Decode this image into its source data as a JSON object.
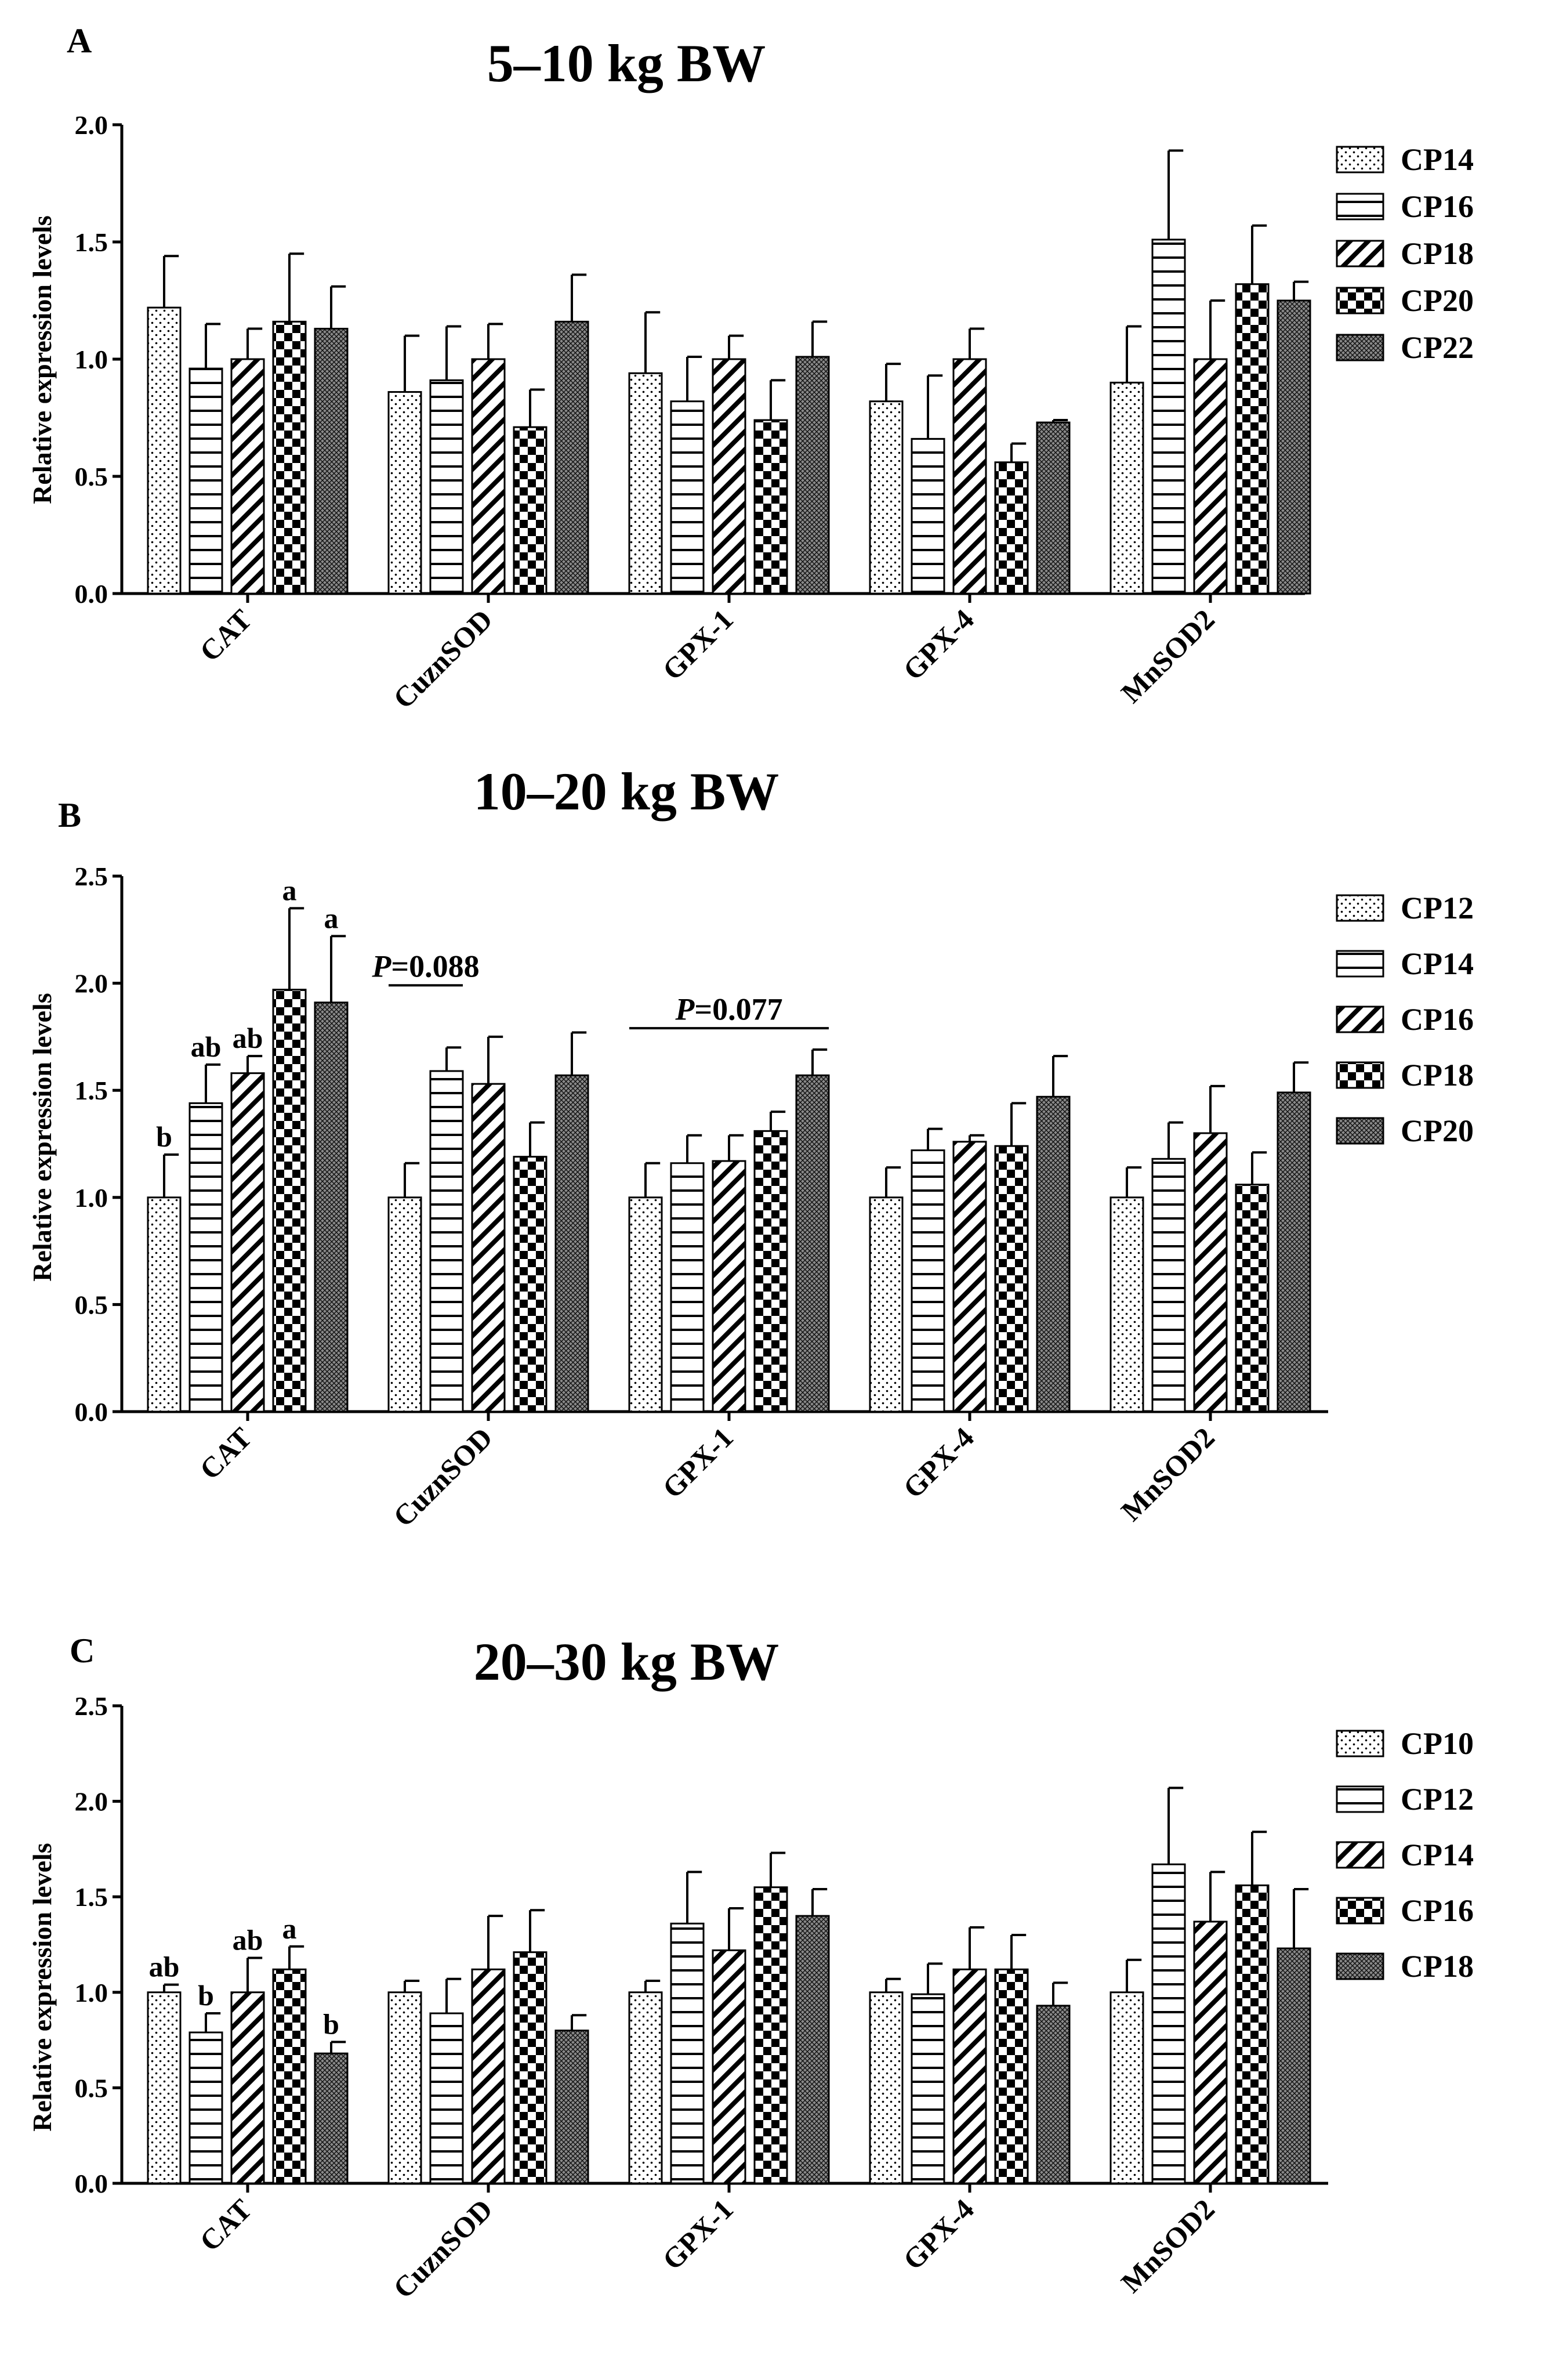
{
  "figure": {
    "panel_count": 3
  },
  "chart_data": [
    {
      "type": "bar",
      "panel_letter": "A",
      "title": "5–10 kg BW",
      "xlabel": "",
      "ylabel": "Relative expression levels",
      "ylim": [
        0,
        2.0
      ],
      "yticks": [
        "0.0",
        "0.5",
        "1.0",
        "1.5",
        "2.0"
      ],
      "categories": [
        "CAT",
        "CuznSOD",
        "GPX-1",
        "GPX-4",
        "MnSOD2"
      ],
      "legend_position": "right",
      "series": [
        {
          "name": "CP14",
          "pattern": "dots",
          "values": [
            1.22,
            0.86,
            0.94,
            0.82,
            0.9
          ],
          "errors": [
            0.22,
            0.24,
            0.26,
            0.16,
            0.24
          ],
          "labels": [
            "",
            "",
            "",
            "",
            ""
          ]
        },
        {
          "name": "CP16",
          "pattern": "hlines",
          "values": [
            0.96,
            0.91,
            0.82,
            0.66,
            1.51
          ],
          "errors": [
            0.19,
            0.23,
            0.19,
            0.27,
            0.38
          ],
          "labels": [
            "",
            "",
            "",
            "",
            ""
          ]
        },
        {
          "name": "CP18",
          "pattern": "diag",
          "values": [
            1.0,
            1.0,
            1.0,
            1.0,
            1.0
          ],
          "errors": [
            0.13,
            0.15,
            0.1,
            0.13,
            0.25
          ],
          "labels": [
            "",
            "",
            "",
            "",
            ""
          ]
        },
        {
          "name": "CP20",
          "pattern": "checker",
          "values": [
            1.16,
            0.71,
            0.74,
            0.56,
            1.32
          ],
          "errors": [
            0.29,
            0.16,
            0.17,
            0.08,
            0.25
          ],
          "labels": [
            "",
            "",
            "",
            "",
            ""
          ]
        },
        {
          "name": "CP22",
          "pattern": "crosshatch",
          "values": [
            1.13,
            1.16,
            1.01,
            0.73,
            1.25
          ],
          "errors": [
            0.18,
            0.2,
            0.15,
            0.01,
            0.08
          ],
          "labels": [
            "",
            "",
            "",
            "",
            ""
          ]
        }
      ],
      "annotations": []
    },
    {
      "type": "bar",
      "panel_letter": "B",
      "title": "10–20 kg BW",
      "xlabel": "",
      "ylabel": "Relative expression levels",
      "ylim": [
        0,
        2.5
      ],
      "yticks": [
        "0.0",
        "0.5",
        "1.0",
        "1.5",
        "2.0",
        "2.5"
      ],
      "categories": [
        "CAT",
        "CuznSOD",
        "GPX-1",
        "GPX-4",
        "MnSOD2"
      ],
      "legend_position": "right",
      "series": [
        {
          "name": "CP12",
          "pattern": "dots",
          "values": [
            1.0,
            1.0,
            1.0,
            1.0,
            1.0
          ],
          "errors": [
            0.2,
            0.16,
            0.16,
            0.14,
            0.14
          ],
          "labels": [
            "b",
            "",
            "",
            "",
            ""
          ]
        },
        {
          "name": "CP14",
          "pattern": "hlines",
          "values": [
            1.44,
            1.59,
            1.16,
            1.22,
            1.18
          ],
          "errors": [
            0.18,
            0.11,
            0.13,
            0.1,
            0.17
          ],
          "labels": [
            "ab",
            "",
            "",
            "",
            ""
          ]
        },
        {
          "name": "CP16",
          "pattern": "diag",
          "values": [
            1.58,
            1.53,
            1.17,
            1.26,
            1.3
          ],
          "errors": [
            0.08,
            0.22,
            0.12,
            0.03,
            0.22
          ],
          "labels": [
            "ab",
            "",
            "",
            "",
            ""
          ]
        },
        {
          "name": "CP18",
          "pattern": "checker",
          "values": [
            1.97,
            1.19,
            1.31,
            1.24,
            1.06
          ],
          "errors": [
            0.38,
            0.16,
            0.09,
            0.2,
            0.15
          ],
          "labels": [
            "a",
            "",
            "",
            "",
            ""
          ]
        },
        {
          "name": "CP20",
          "pattern": "crosshatch",
          "values": [
            1.91,
            1.57,
            1.57,
            1.47,
            1.49
          ],
          "errors": [
            0.31,
            0.2,
            0.12,
            0.19,
            0.14
          ],
          "labels": [
            "a",
            "",
            "",
            "",
            ""
          ]
        }
      ],
      "annotations": [
        {
          "prefix": "P",
          "text": "=0.088",
          "category_index": 1,
          "from_series": 0,
          "to_series": 1,
          "y": 1.99,
          "text_y": 2.03
        },
        {
          "prefix": "P",
          "text": "=0.077",
          "category_index": 2,
          "from_series": 0,
          "to_series": 4,
          "y": 1.79,
          "text_y": 1.83
        }
      ]
    },
    {
      "type": "bar",
      "panel_letter": "C",
      "title": "20–30 kg BW",
      "xlabel": "",
      "ylabel": "Relative expression levels",
      "ylim": [
        0,
        2.5
      ],
      "yticks": [
        "0.0",
        "0.5",
        "1.0",
        "1.5",
        "2.0",
        "2.5"
      ],
      "categories": [
        "CAT",
        "CuznSOD",
        "GPX-1",
        "GPX-4",
        "MnSOD2"
      ],
      "legend_position": "right",
      "series": [
        {
          "name": "CP10",
          "pattern": "dots",
          "values": [
            1.0,
            1.0,
            1.0,
            1.0,
            1.0
          ],
          "errors": [
            0.04,
            0.06,
            0.06,
            0.07,
            0.17
          ],
          "labels": [
            "ab",
            "",
            "",
            "",
            ""
          ]
        },
        {
          "name": "CP12",
          "pattern": "hlines",
          "values": [
            0.79,
            0.89,
            1.36,
            0.99,
            1.67
          ],
          "errors": [
            0.1,
            0.18,
            0.27,
            0.16,
            0.4
          ],
          "labels": [
            "b",
            "",
            "",
            "",
            ""
          ]
        },
        {
          "name": "CP14",
          "pattern": "diag",
          "values": [
            1.0,
            1.12,
            1.22,
            1.12,
            1.37
          ],
          "errors": [
            0.18,
            0.28,
            0.22,
            0.22,
            0.26
          ],
          "labels": [
            "ab",
            "",
            "",
            "",
            ""
          ]
        },
        {
          "name": "CP16",
          "pattern": "checker",
          "values": [
            1.12,
            1.21,
            1.55,
            1.12,
            1.56
          ],
          "errors": [
            0.12,
            0.22,
            0.18,
            0.18,
            0.28
          ],
          "labels": [
            "a",
            "",
            "",
            "",
            ""
          ]
        },
        {
          "name": "CP18",
          "pattern": "crosshatch",
          "values": [
            0.68,
            0.8,
            1.4,
            0.93,
            1.23
          ],
          "errors": [
            0.06,
            0.08,
            0.14,
            0.12,
            0.31
          ],
          "labels": [
            "b",
            "",
            "",
            "",
            ""
          ]
        }
      ],
      "annotations": []
    }
  ]
}
